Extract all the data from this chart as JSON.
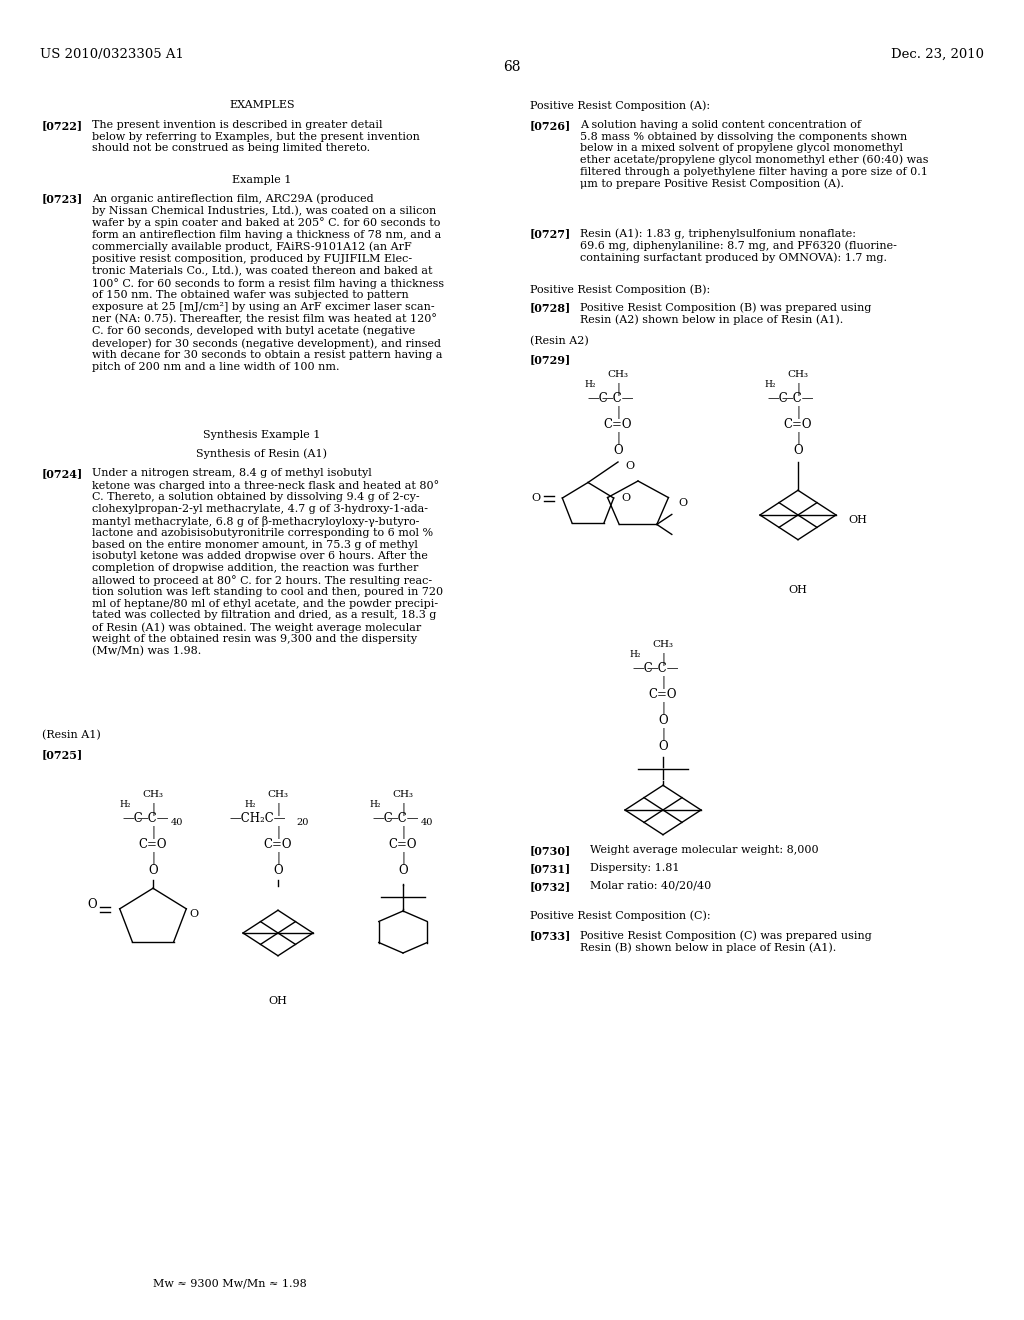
{
  "bg_color": "#ffffff",
  "header_left": "US 2010/0323305 A1",
  "header_right": "Dec. 23, 2010",
  "page_number": "68"
}
